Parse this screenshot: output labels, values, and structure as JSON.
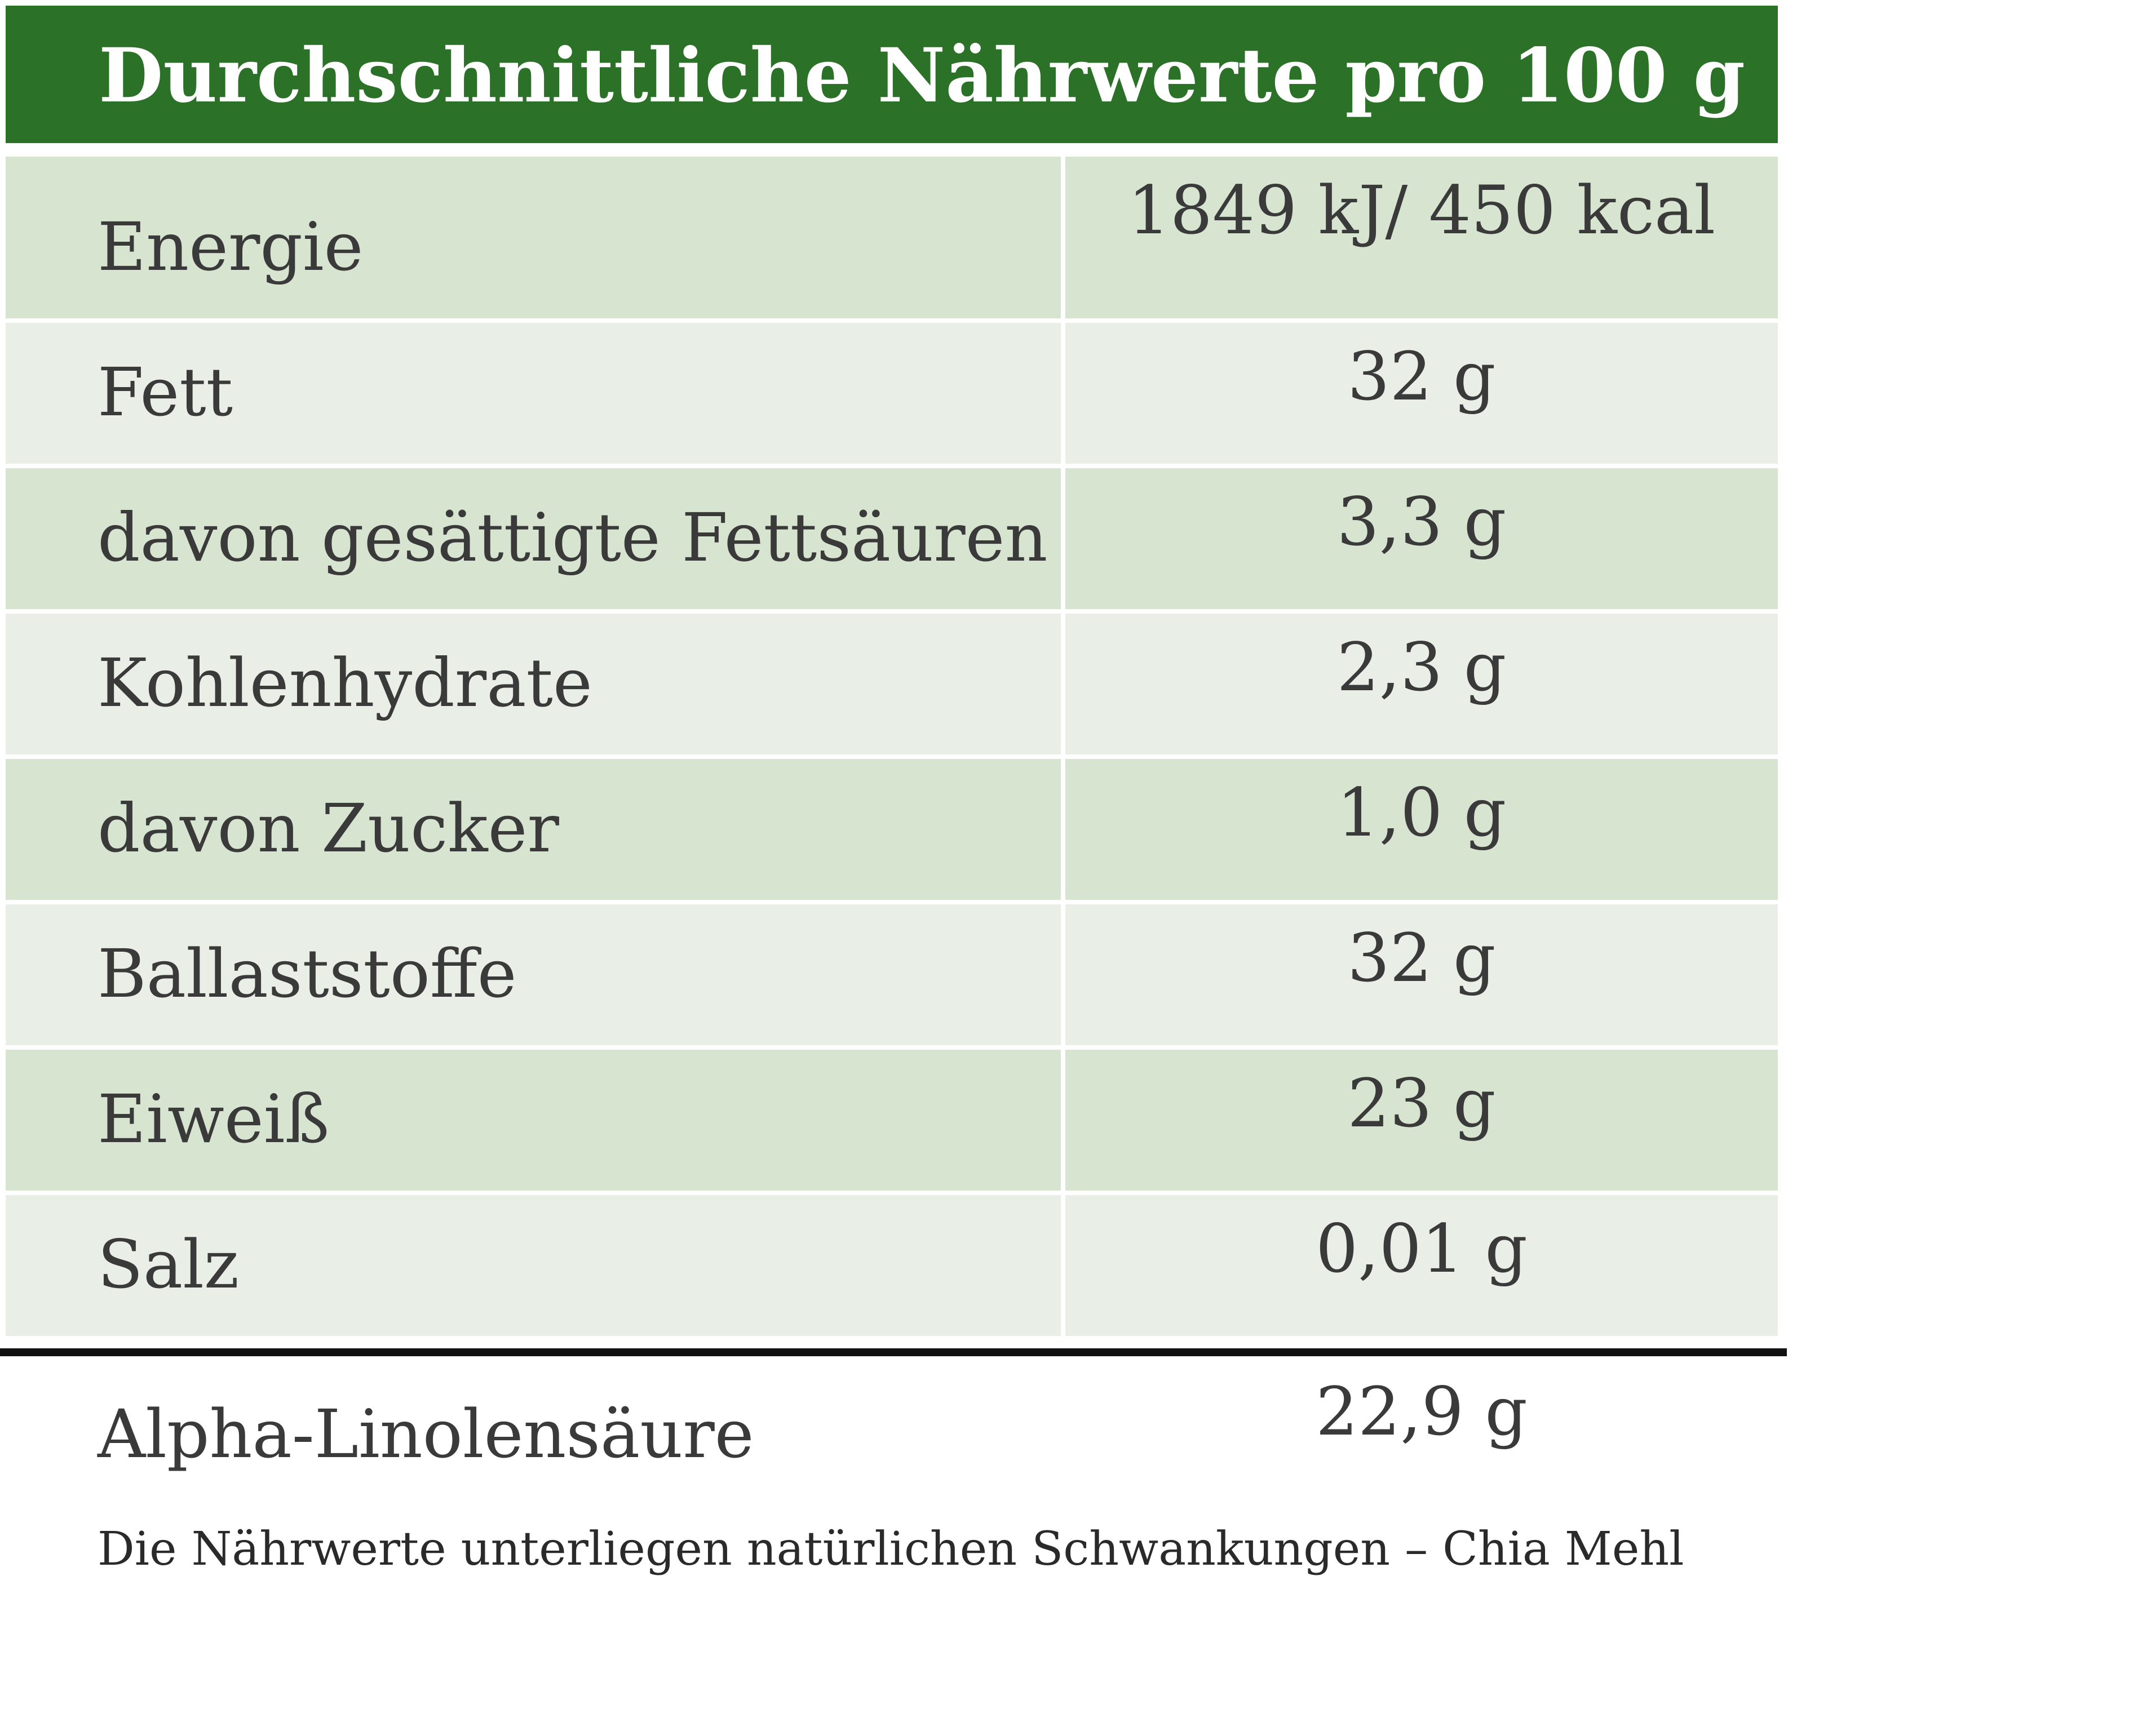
{
  "header": {
    "title": "Durchschnittliche Nährwerte pro 100 g"
  },
  "rows": [
    {
      "label": "Energie",
      "value": "1849 kJ/ 450 kcal"
    },
    {
      "label": "Fett",
      "value": "32 g"
    },
    {
      "label": "davon gesättigte Fettsäuren",
      "value": "3,3 g"
    },
    {
      "label": "Kohlenhydrate",
      "value": "2,3 g"
    },
    {
      "label": "davon Zucker",
      "value": "1,0 g"
    },
    {
      "label": "Ballaststoffe",
      "value": "32 g"
    },
    {
      "label": "Eiweiß",
      "value": "23 g"
    },
    {
      "label": "Salz",
      "value": "0,01 g"
    }
  ],
  "extra": {
    "label": "Alpha-Linolensäure",
    "value": "22,9 g"
  },
  "footnote": "Die Nährwerte unterliegen natürlichen Schwankungen – Chia Mehl",
  "colors": {
    "header_bg": "#2c7128",
    "row_dark": "#d7e4d0",
    "row_light": "#e9efe6",
    "text": "#3a3a3a"
  }
}
